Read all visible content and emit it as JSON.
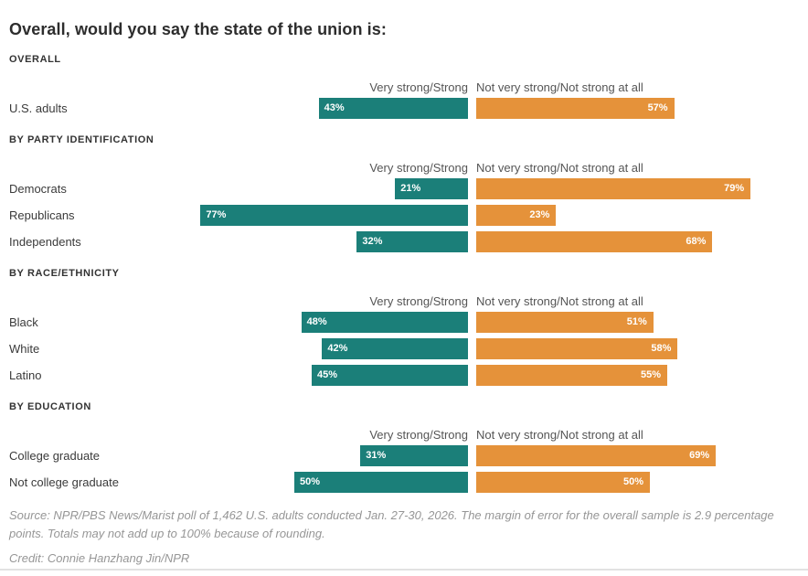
{
  "page": {
    "title": "Overall, would you say the state of the union is:",
    "footer_source": "Source: NPR/PBS News/Marist poll of 1,462 U.S. adults conducted Jan. 27-30, 2026. The margin of error for the overall sample is 2.9 percentage points. Totals may not add up to 100% because of rounding.",
    "footer_credit": "Credit: Connie Hanzhang Jin/NPR"
  },
  "chart_data": {
    "type": "bar",
    "orientation": "horizontal",
    "unit": "%",
    "x_max": 100,
    "grid": false,
    "legend_position": "column-headers-above-bars",
    "series_labels": {
      "strong": "Very strong/Strong",
      "not_strong": "Not very strong/Not strong at all"
    },
    "colors": {
      "strong": "#1b7f79",
      "not_strong": "#e5923a"
    },
    "sections": [
      {
        "title": "OVERALL",
        "rows": [
          {
            "label": "U.S. adults",
            "strong": 43,
            "not_strong": 57
          }
        ]
      },
      {
        "title": "BY PARTY IDENTIFICATION",
        "rows": [
          {
            "label": "Democrats",
            "strong": 21,
            "not_strong": 79
          },
          {
            "label": "Republicans",
            "strong": 77,
            "not_strong": 23
          },
          {
            "label": "Independents",
            "strong": 32,
            "not_strong": 68
          }
        ]
      },
      {
        "title": "BY RACE/ETHNICITY",
        "rows": [
          {
            "label": "Black",
            "strong": 48,
            "not_strong": 51
          },
          {
            "label": "White",
            "strong": 42,
            "not_strong": 58
          },
          {
            "label": "Latino",
            "strong": 45,
            "not_strong": 55
          }
        ]
      },
      {
        "title": "BY EDUCATION",
        "rows": [
          {
            "label": "College graduate",
            "strong": 31,
            "not_strong": 69
          },
          {
            "label": "Not college graduate",
            "strong": 50,
            "not_strong": 50
          }
        ]
      }
    ]
  }
}
